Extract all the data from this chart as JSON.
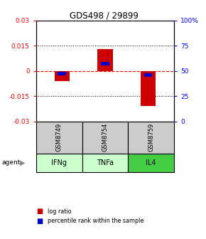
{
  "title": "GDS498 / 29899",
  "samples": [
    "GSM8749",
    "GSM8754",
    "GSM8759"
  ],
  "agents": [
    "IFNg",
    "TNFa",
    "IL4"
  ],
  "agent_colors": [
    "#ccffcc",
    "#ccffcc",
    "#44cc44"
  ],
  "log_ratios": [
    -0.006,
    0.013,
    -0.021
  ],
  "percentile_ranks": [
    47,
    57,
    46
  ],
  "ylim_left": [
    -0.03,
    0.03
  ],
  "ylim_right": [
    0,
    100
  ],
  "yticks_left": [
    -0.03,
    -0.015,
    0,
    0.015,
    0.03
  ],
  "yticks_right": [
    0,
    25,
    50,
    75,
    100
  ],
  "red_color": "#cc0000",
  "blue_color": "#0000cc",
  "sample_bg": "#cccccc",
  "legend_red": "log ratio",
  "legend_blue": "percentile rank within the sample",
  "bar_width": 0.35
}
